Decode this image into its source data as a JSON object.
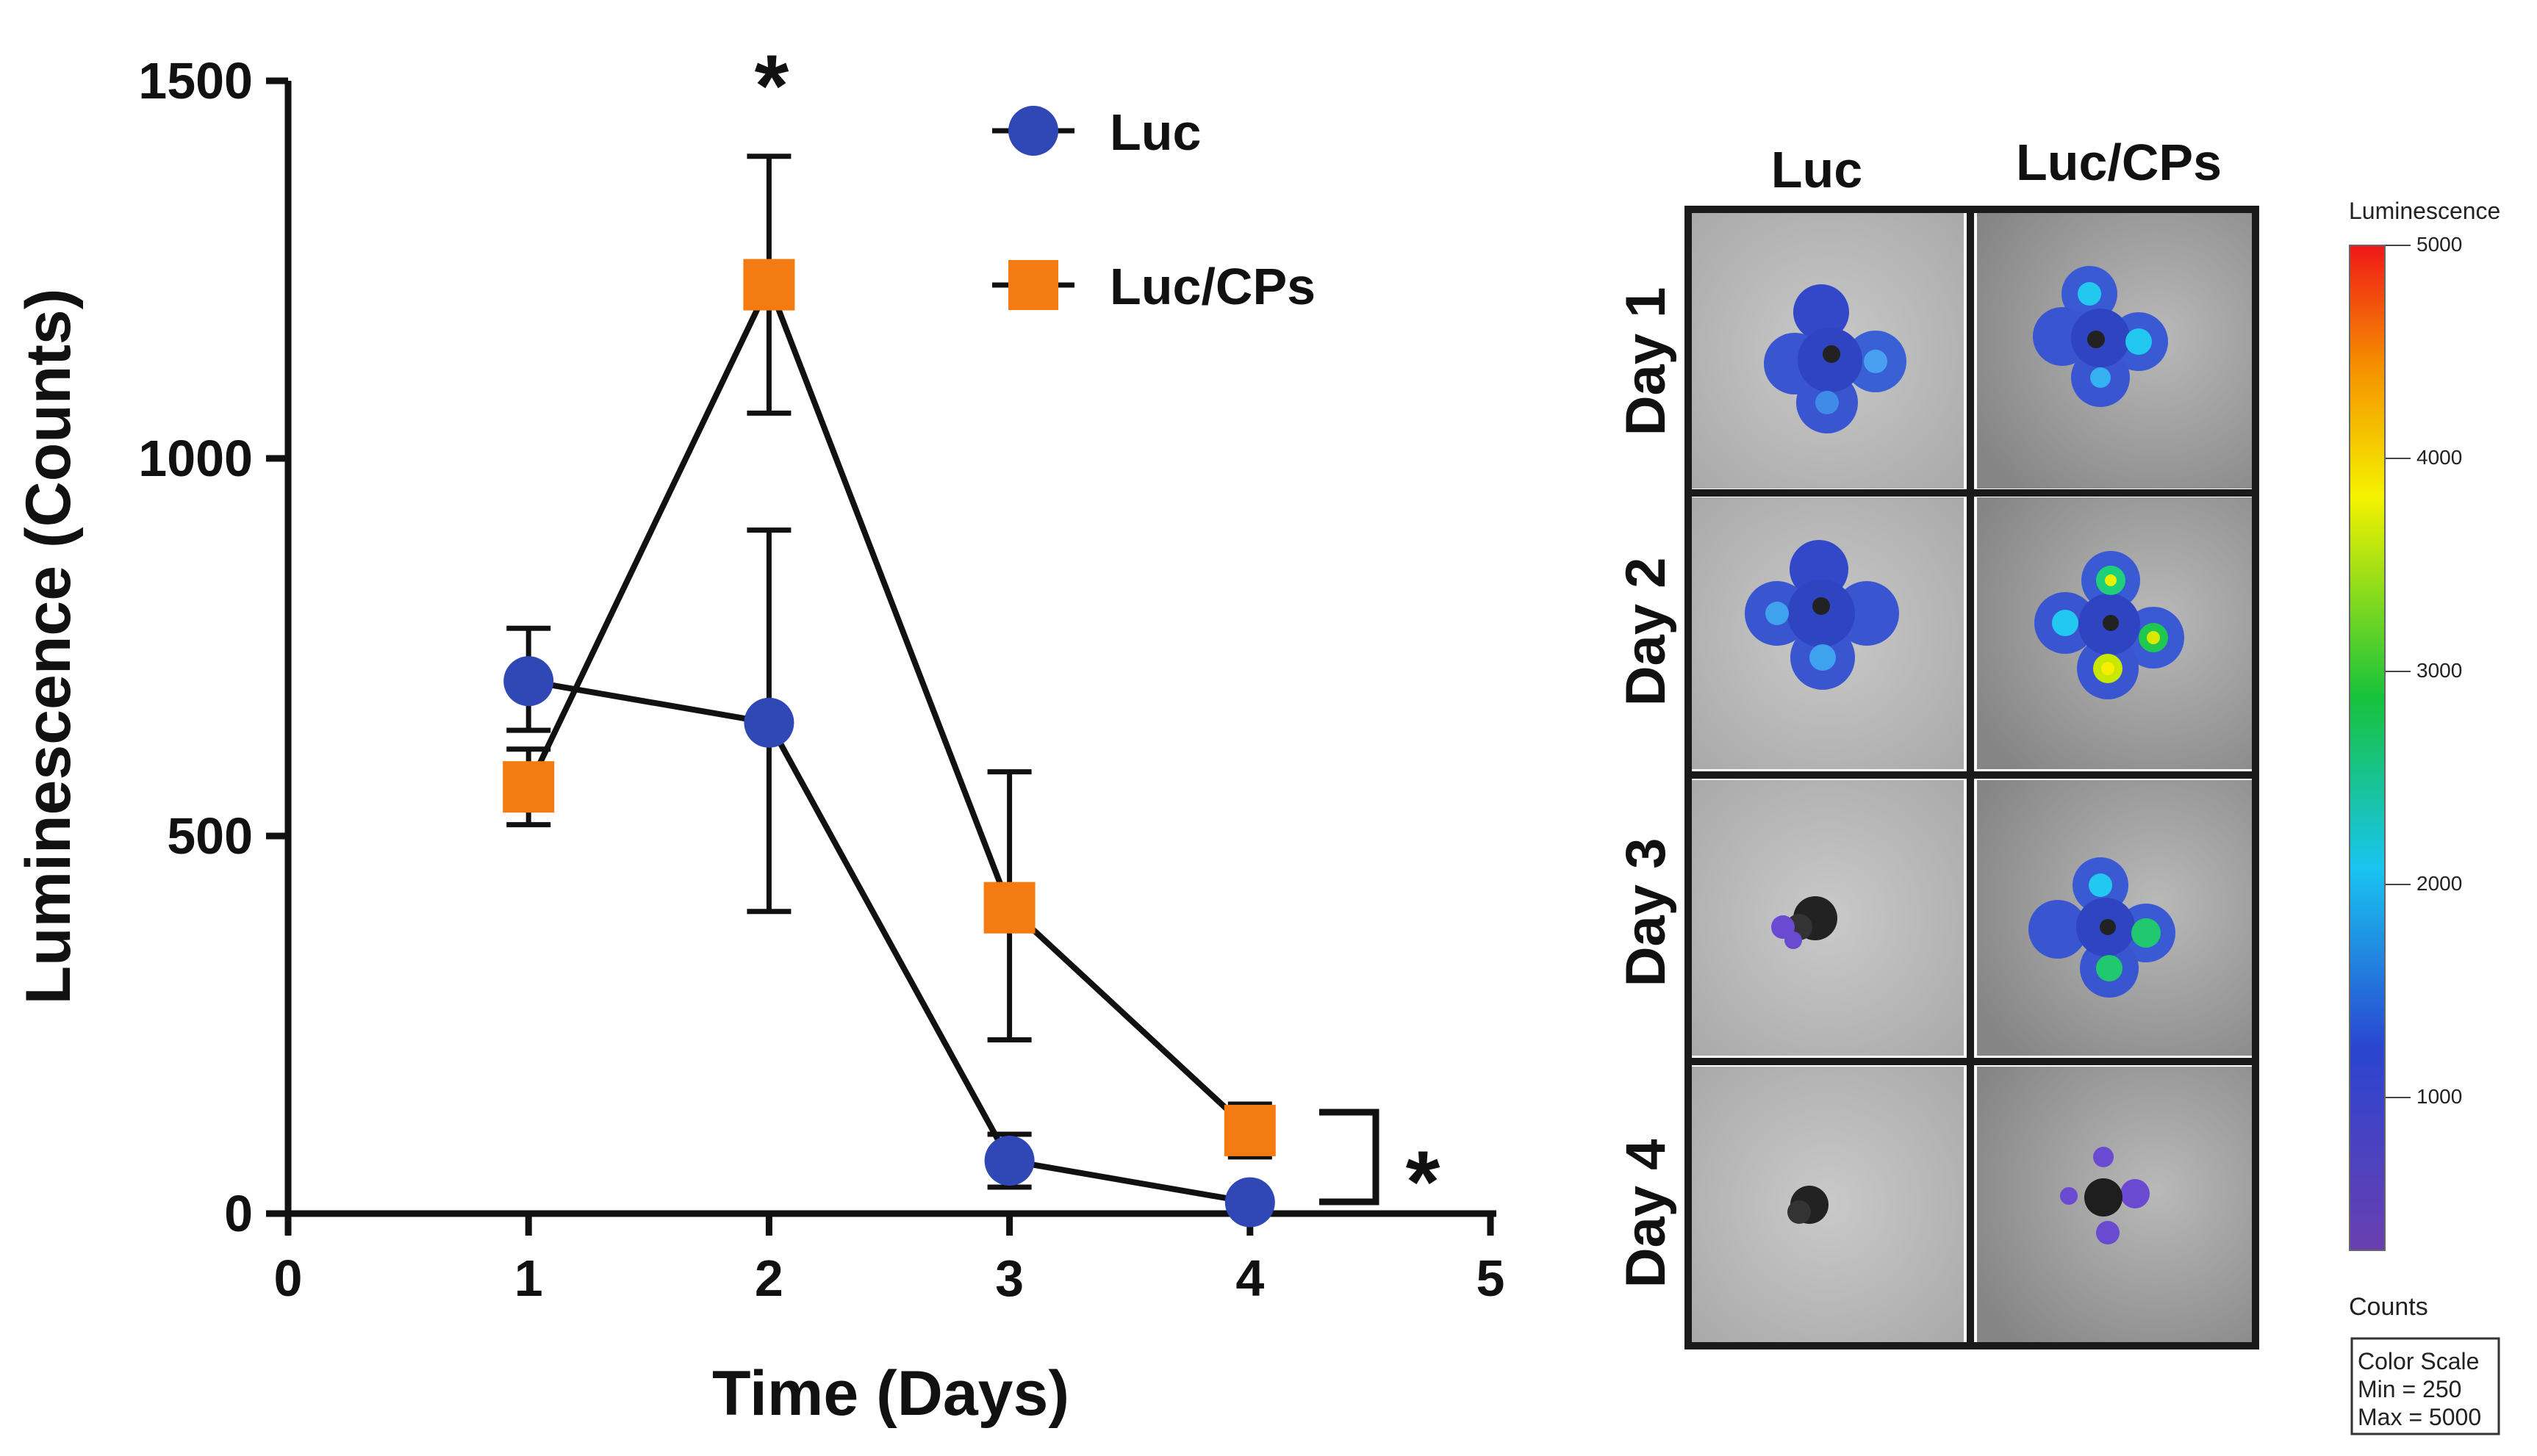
{
  "chart_data": {
    "type": "line",
    "xlabel": "Time (Days)",
    "ylabel": "Luminescence (Counts)",
    "xlim": [
      0,
      5
    ],
    "ylim": [
      0,
      1500
    ],
    "xticks": [
      "0",
      "1",
      "2",
      "3",
      "4",
      "5"
    ],
    "yticks": [
      "0",
      "500",
      "1000",
      "1500"
    ],
    "legend_position": "top-right",
    "grid": false,
    "series": [
      {
        "name": "Luc",
        "color": "#2f48b5",
        "marker": "circle",
        "x": [
          1,
          2,
          3,
          4
        ],
        "y": [
          705,
          650,
          70,
          15
        ],
        "err_low": [
          640,
          400,
          35,
          10
        ],
        "err_high": [
          775,
          905,
          105,
          25
        ]
      },
      {
        "name": "Luc/CPs",
        "color": "#f47a12",
        "marker": "square",
        "x": [
          1,
          2,
          3,
          4
        ],
        "y": [
          565,
          1230,
          405,
          110
        ],
        "err_low": [
          515,
          1060,
          230,
          75
        ],
        "err_high": [
          615,
          1400,
          585,
          145
        ]
      }
    ],
    "annotations": [
      "*",
      "*"
    ]
  },
  "imaging_panel": {
    "columns": [
      "Luc",
      "Luc/CPs"
    ],
    "rows": [
      "Day 1",
      "Day 2",
      "Day 3",
      "Day 4"
    ],
    "colorbar": {
      "title": "Luminescence",
      "ticks": [
        "5000",
        "4000",
        "3000",
        "2000",
        "1000"
      ],
      "unit": "Counts",
      "box_lines": [
        "Color Scale",
        "Min = 250",
        "Max = 5000"
      ]
    }
  }
}
